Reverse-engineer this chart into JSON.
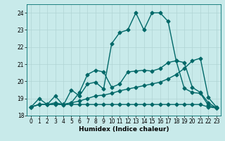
{
  "xlabel": "Humidex (Indice chaleur)",
  "background_color": "#c8eaea",
  "grid_color": "#b0d4d4",
  "line_color": "#006868",
  "xlim": [
    -0.5,
    23.5
  ],
  "ylim": [
    18.0,
    24.5
  ],
  "yticks": [
    18,
    19,
    20,
    21,
    22,
    23,
    24
  ],
  "xticks": [
    0,
    1,
    2,
    3,
    4,
    5,
    6,
    7,
    8,
    9,
    10,
    11,
    12,
    13,
    14,
    15,
    16,
    17,
    18,
    19,
    20,
    21,
    22,
    23
  ],
  "lines": [
    {
      "x": [
        0,
        1,
        2,
        3,
        4,
        5,
        6,
        7,
        8,
        9,
        10,
        11,
        12,
        13,
        14,
        15,
        16,
        17,
        18,
        19,
        20,
        21,
        22,
        23
      ],
      "y": [
        18.5,
        19.0,
        18.65,
        19.15,
        18.6,
        19.5,
        19.15,
        19.85,
        19.95,
        19.55,
        22.2,
        22.85,
        23.0,
        24.0,
        23.0,
        24.0,
        24.0,
        23.5,
        21.2,
        21.1,
        19.65,
        19.35,
        18.75,
        18.45
      ],
      "marker": "D",
      "markersize": 2.5,
      "linewidth": 1.0
    },
    {
      "x": [
        0,
        1,
        2,
        3,
        4,
        5,
        6,
        7,
        8,
        9,
        10,
        11,
        12,
        13,
        14,
        15,
        16,
        17,
        18,
        19,
        20,
        21,
        22,
        23
      ],
      "y": [
        18.5,
        18.65,
        18.65,
        18.65,
        18.65,
        18.75,
        19.35,
        20.4,
        20.65,
        20.55,
        19.65,
        19.85,
        20.55,
        20.6,
        20.65,
        20.6,
        20.75,
        21.1,
        21.2,
        19.6,
        19.35,
        19.3,
        18.6,
        18.45
      ],
      "marker": "D",
      "markersize": 2.5,
      "linewidth": 1.0
    },
    {
      "x": [
        0,
        1,
        2,
        3,
        4,
        5,
        6,
        7,
        8,
        9,
        10,
        11,
        12,
        13,
        14,
        15,
        16,
        17,
        18,
        19,
        20,
        21,
        22,
        23
      ],
      "y": [
        18.5,
        18.65,
        18.65,
        18.75,
        18.65,
        18.75,
        18.85,
        19.0,
        19.15,
        19.2,
        19.3,
        19.45,
        19.55,
        19.65,
        19.75,
        19.85,
        19.95,
        20.15,
        20.4,
        20.75,
        21.2,
        21.35,
        19.05,
        18.5
      ],
      "marker": "D",
      "markersize": 2.5,
      "linewidth": 1.0
    },
    {
      "x": [
        0,
        1,
        2,
        3,
        4,
        5,
        6,
        7,
        8,
        9,
        10,
        11,
        12,
        13,
        14,
        15,
        16,
        17,
        18,
        19,
        20,
        21,
        22,
        23
      ],
      "y": [
        18.5,
        18.65,
        18.65,
        18.65,
        18.65,
        18.65,
        18.65,
        18.65,
        18.65,
        18.65,
        18.65,
        18.65,
        18.65,
        18.65,
        18.65,
        18.65,
        18.65,
        18.65,
        18.65,
        18.65,
        18.65,
        18.65,
        18.5,
        18.45
      ],
      "marker": "D",
      "markersize": 2.5,
      "linewidth": 1.0
    }
  ]
}
